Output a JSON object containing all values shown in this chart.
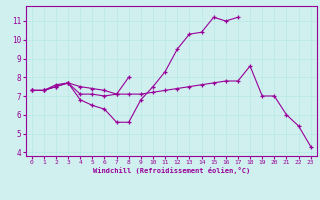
{
  "xlabel": "Windchill (Refroidissement éolien,°C)",
  "bg_color": "#cff0ee",
  "line_color": "#990099",
  "grid_color": "#b8e8e4",
  "xlim": [
    -0.5,
    23.5
  ],
  "ylim": [
    3.8,
    11.8
  ],
  "yticks": [
    4,
    5,
    6,
    7,
    8,
    9,
    10,
    11
  ],
  "xticks": [
    0,
    1,
    2,
    3,
    4,
    5,
    6,
    7,
    8,
    9,
    10,
    11,
    12,
    13,
    14,
    15,
    16,
    17,
    18,
    19,
    20,
    21,
    22,
    23
  ],
  "line1_x": [
    0,
    1,
    2,
    3,
    4,
    5,
    6,
    7,
    8,
    9,
    10,
    11,
    12,
    13,
    14,
    15,
    16,
    17,
    18,
    19,
    20,
    21,
    22,
    23
  ],
  "line1_y": [
    7.3,
    7.3,
    7.5,
    7.7,
    7.5,
    7.4,
    7.3,
    7.1,
    7.1,
    7.1,
    7.2,
    7.3,
    7.4,
    7.5,
    7.6,
    7.7,
    7.8,
    7.8,
    8.6,
    7.0,
    7.0,
    6.0,
    5.4,
    4.3
  ],
  "line2_x": [
    0,
    1,
    2,
    3,
    4,
    5,
    6,
    7,
    8,
    9,
    10,
    11,
    12,
    13,
    14,
    15,
    16,
    17
  ],
  "line2_y": [
    7.3,
    7.3,
    7.5,
    7.7,
    6.8,
    6.5,
    6.3,
    5.6,
    5.6,
    6.8,
    7.5,
    8.3,
    9.5,
    10.3,
    10.4,
    11.2,
    11.0,
    11.2
  ],
  "line3_x": [
    0,
    1,
    2,
    3,
    4,
    5,
    6,
    7,
    8
  ],
  "line3_y": [
    7.3,
    7.3,
    7.6,
    7.7,
    7.1,
    7.1,
    7.0,
    7.1,
    8.0
  ]
}
